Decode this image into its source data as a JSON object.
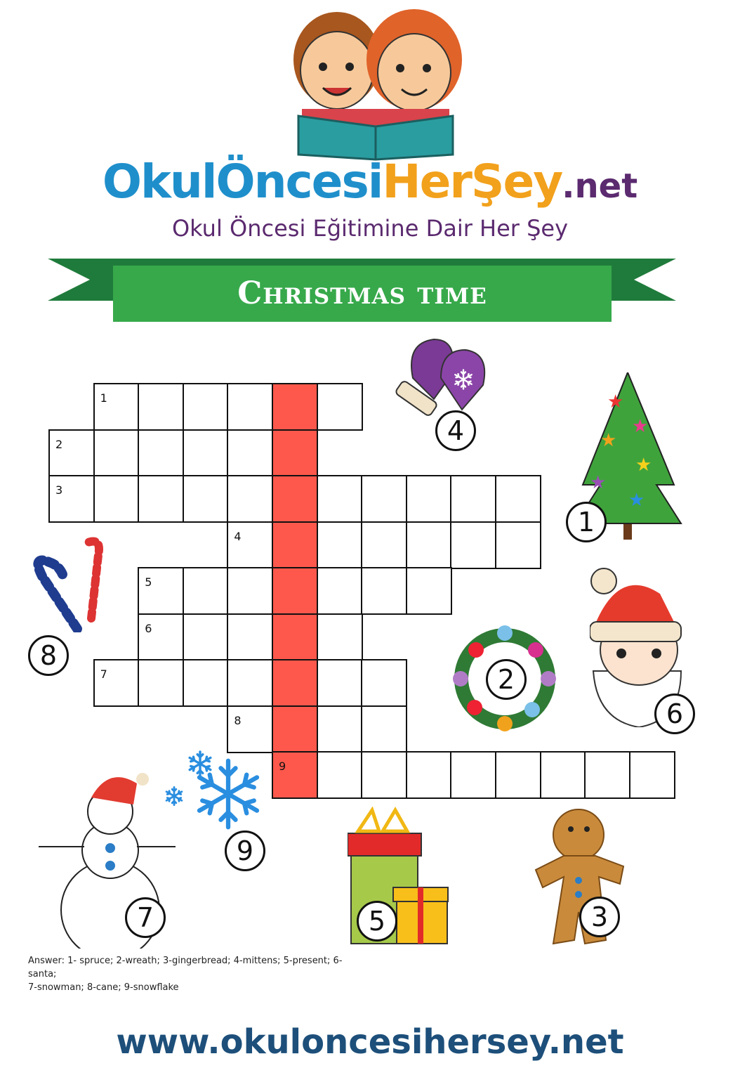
{
  "header": {
    "logo_part1": "OkulÖncesi",
    "logo_part2": "HerŞey",
    "logo_part3": ".net",
    "tagline": "Okul Öncesi Eğitimine Dair Her Şey",
    "illustration": "two children reading a book"
  },
  "banner": {
    "title": "Christmas time",
    "color": "#37a94b"
  },
  "crossword": {
    "highlight_color": "#fe584c",
    "highlight_column": 5,
    "rows": [
      {
        "number": "1",
        "start": 1,
        "length": 6
      },
      {
        "number": "2",
        "start": 0,
        "length": 6
      },
      {
        "number": "3",
        "start": 0,
        "length": 11
      },
      {
        "number": "4",
        "start": 4,
        "length": 7
      },
      {
        "number": "5",
        "start": 2,
        "length": 7
      },
      {
        "number": "6",
        "start": 2,
        "length": 5
      },
      {
        "number": "7",
        "start": 1,
        "length": 7
      },
      {
        "number": "8",
        "start": 4,
        "length": 4
      },
      {
        "number": "9",
        "start": 5,
        "length": 9
      }
    ]
  },
  "pictures": [
    {
      "number": "1",
      "icon": "christmas-tree"
    },
    {
      "number": "2",
      "icon": "wreath"
    },
    {
      "number": "3",
      "icon": "gingerbread-man"
    },
    {
      "number": "4",
      "icon": "mittens"
    },
    {
      "number": "5",
      "icon": "present"
    },
    {
      "number": "6",
      "icon": "santa"
    },
    {
      "number": "7",
      "icon": "snowman"
    },
    {
      "number": "8",
      "icon": "candy-cane"
    },
    {
      "number": "9",
      "icon": "snowflake"
    }
  ],
  "answers": {
    "line1": "Answer:  1- spruce; 2-wreath; 3-gingerbread; 4-mittens; 5-present; 6-santa;",
    "line2": "7-snowman; 8-cane; 9-snowflake"
  },
  "footer": {
    "url": "www.okuloncesihersey.net"
  }
}
